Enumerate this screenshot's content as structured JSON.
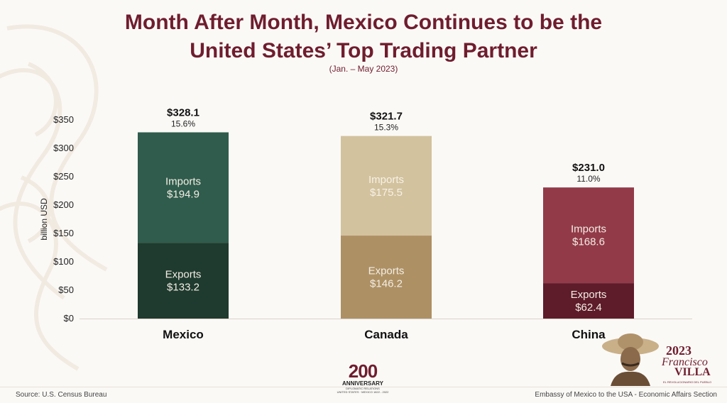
{
  "header": {
    "title_line1": "Month After Month, Mexico Continues to be the",
    "title_line2": "United States’ Top Trading Partner",
    "subtitle": "(Jan. – May 2023)"
  },
  "footer": {
    "source": "Source: U.S. Census Bureau",
    "credit": "Embassy of Mexico to the USA - Economic Affairs Section"
  },
  "logos": {
    "anniversary_number": "200",
    "anniversary_label": "ANNIVERSARY",
    "anniversary_sub": "DIPLOMATIC RELATIONS",
    "anniversary_sub2": "UNITED STATES · MEXICO 1822 - 2022",
    "villa_year": "2023",
    "villa_name1": "Francisco",
    "villa_name2": "VILLA",
    "villa_tag": "EL REVOLUCIONARIO DEL PUEBLO"
  },
  "chart_data": {
    "type": "bar",
    "stacked": true,
    "categories": [
      "Mexico",
      "Canada",
      "China"
    ],
    "ylabel": "billion USD",
    "ylim": [
      0,
      350
    ],
    "yticks": [
      "$0",
      "$50",
      "$100",
      "$150",
      "$200",
      "$250",
      "$300",
      "$350"
    ],
    "ytick_values": [
      0,
      50,
      100,
      150,
      200,
      250,
      300,
      350
    ],
    "series": [
      {
        "name": "Exports",
        "values": [
          133.2,
          146.2,
          62.4
        ],
        "labels": [
          "$133.2",
          "$146.2",
          "$62.4"
        ],
        "colors": [
          "#1f3a2e",
          "#ad9064",
          "#5e1b2a"
        ]
      },
      {
        "name": "Imports",
        "values": [
          194.9,
          175.5,
          168.6
        ],
        "labels": [
          "$194.9",
          "$175.5",
          "$168.6"
        ],
        "colors": [
          "#2f5c4c",
          "#d2c29e",
          "#923a48"
        ]
      }
    ],
    "totals": [
      "$328.1",
      "$321.7",
      "$231.0"
    ],
    "total_values": [
      328.1,
      321.7,
      231.0
    ],
    "shares": [
      "15.6%",
      "15.3%",
      "11.0%"
    ],
    "grid": false,
    "legend": "none"
  }
}
